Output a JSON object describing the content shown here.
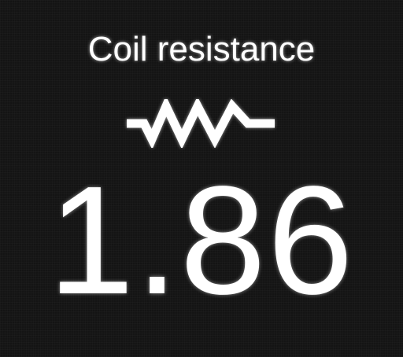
{
  "display": {
    "title": "Coil resistance",
    "icon": "resistor-icon",
    "value": "1.86"
  },
  "colors": {
    "background": "#141414",
    "foreground": "#ffffff"
  }
}
